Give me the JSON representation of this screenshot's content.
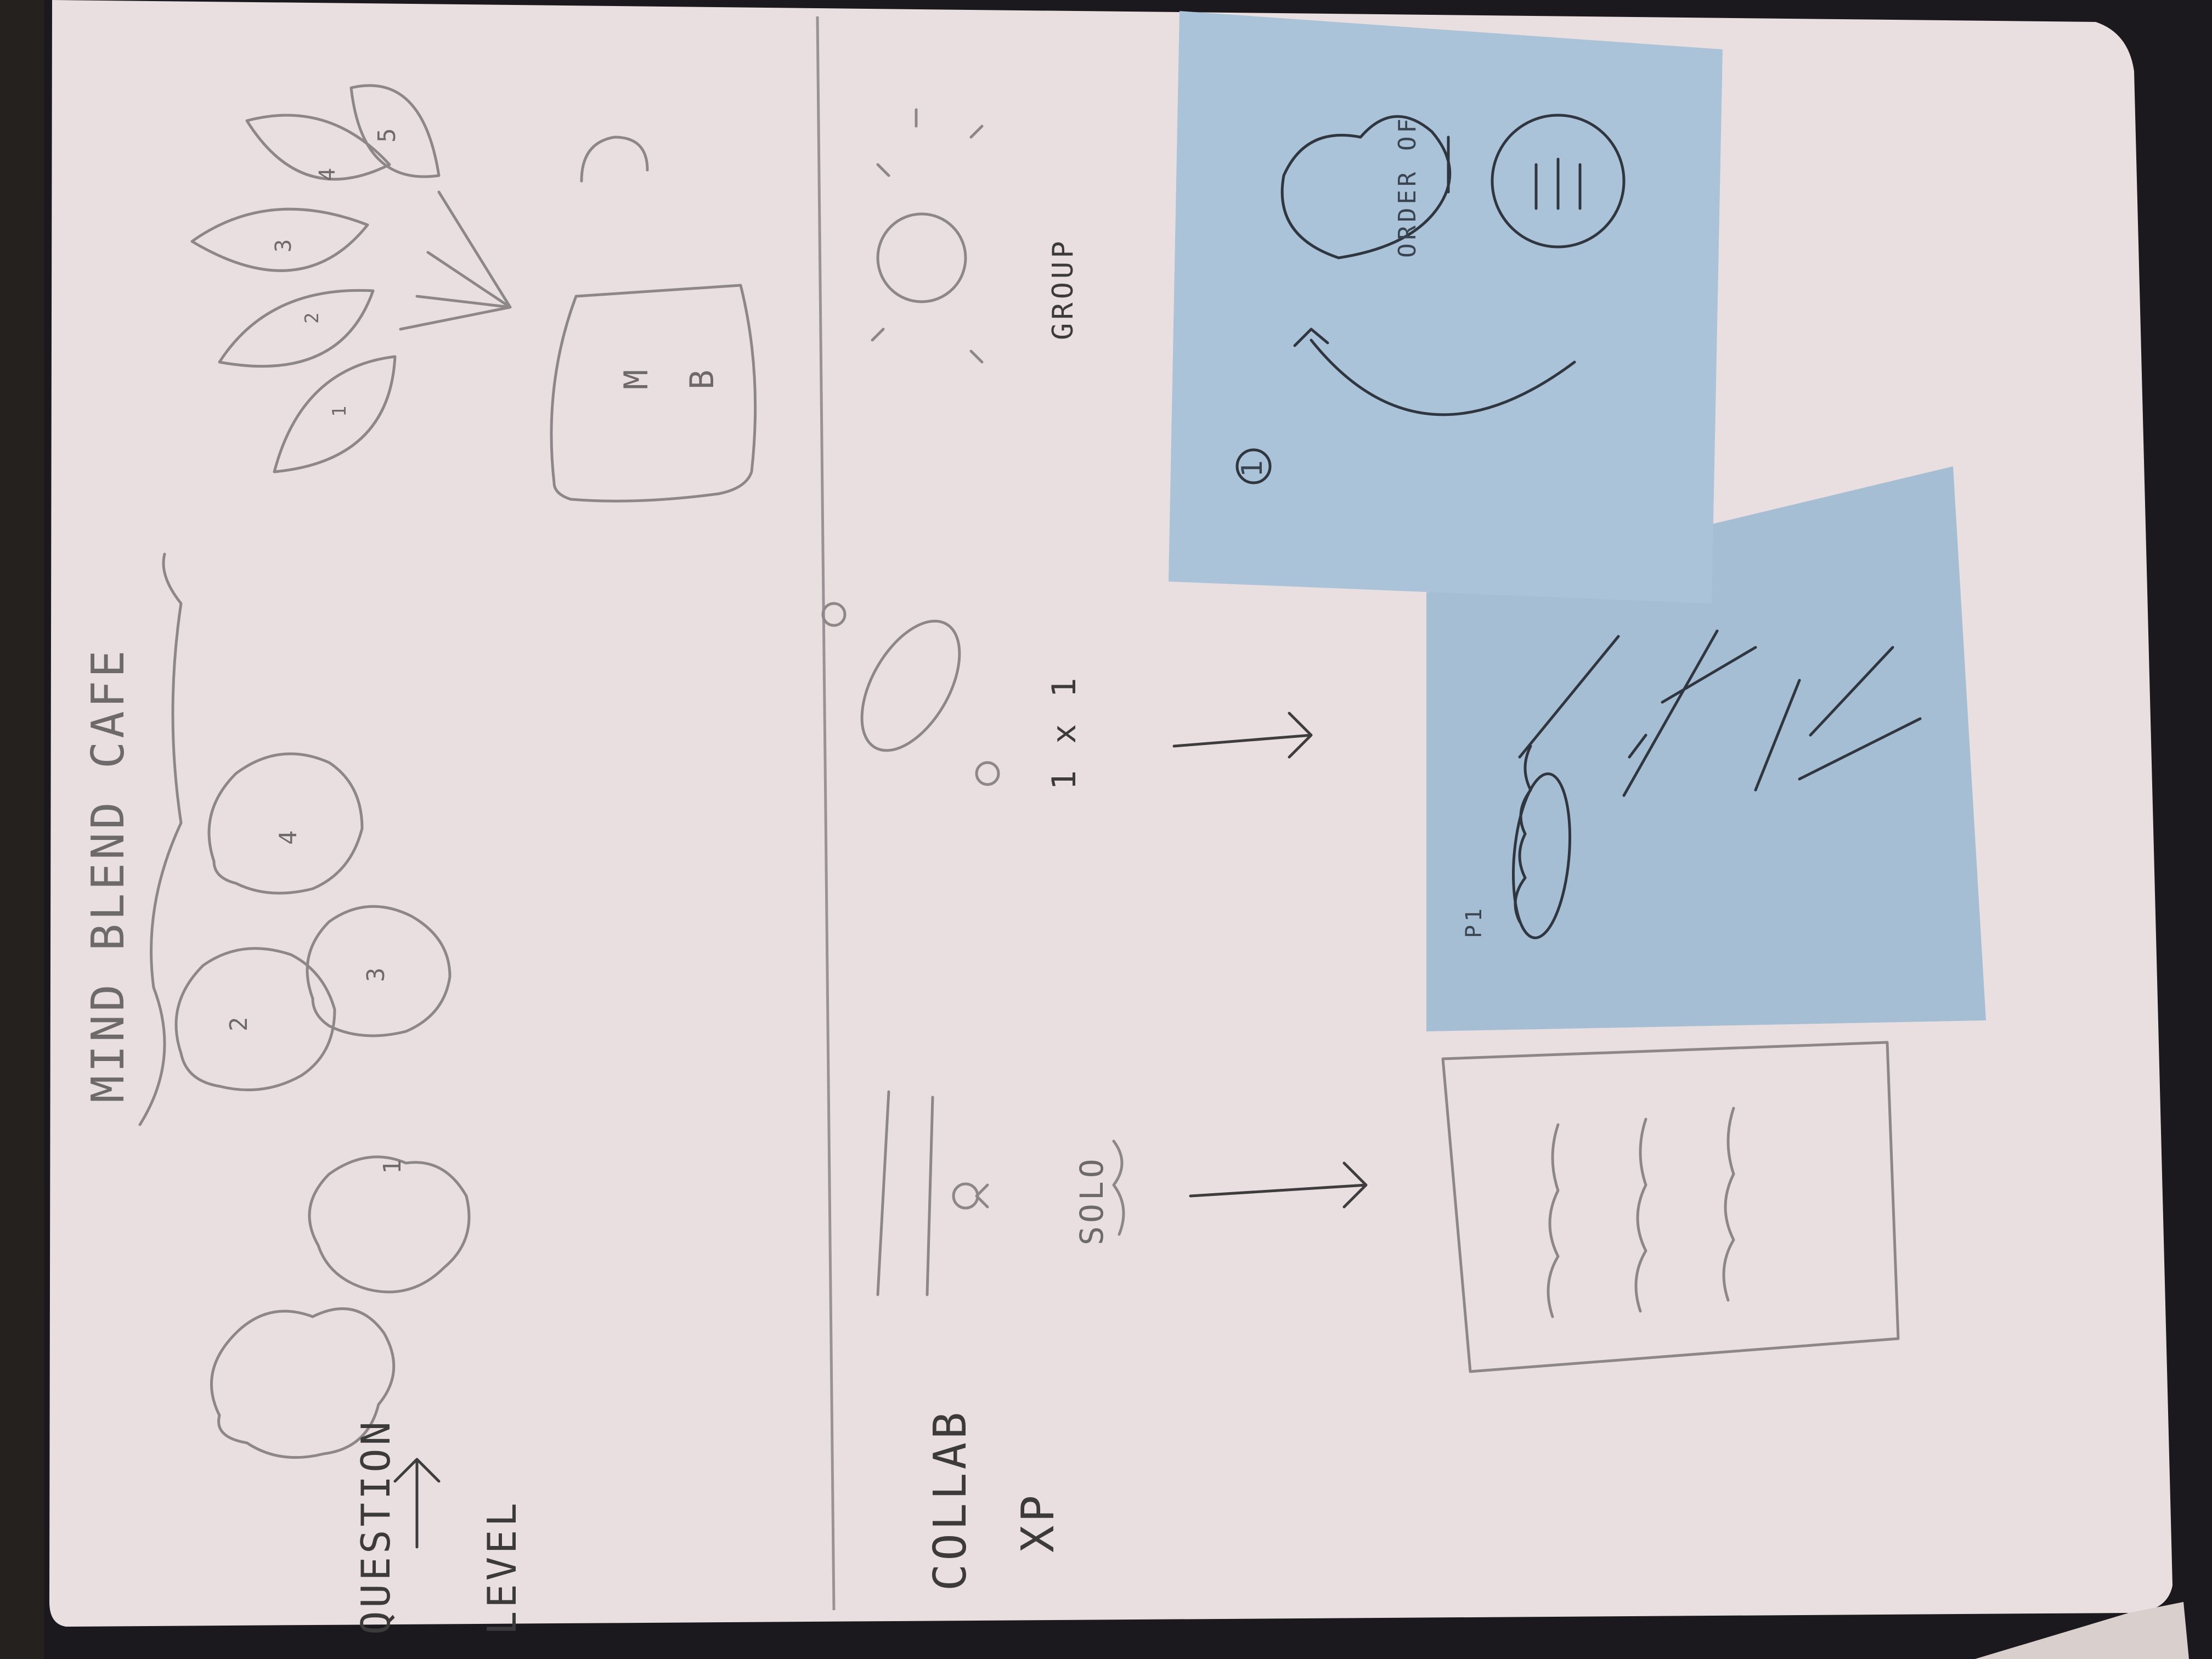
{
  "photo": {
    "subject": "notebook-sketch",
    "colors": {
      "page": "#e9dfe0",
      "sticky_note": "#a9c1d6",
      "cover": "#1c1a1e",
      "pencil": "#8d8789",
      "ink": "#3f3c3f"
    }
  },
  "sketch_page": {
    "title": "MIND BLEND CAFE",
    "left_label": "QUESTION",
    "left_label_2": "LEVEL",
    "bottom_label_line1": "COLLAB",
    "bottom_label_line2": "XP",
    "mode_solo": "SOLO",
    "mode_one_on_one": "1 x 1",
    "mode_group": "GROUP",
    "cloud_numbers": [
      "1",
      "2",
      "3",
      "4"
    ],
    "leaf_numbers": [
      "1",
      "2",
      "3",
      "4",
      "5"
    ],
    "mug_letters": [
      "M",
      "B"
    ]
  },
  "sticky_note_top": {
    "number": "1",
    "text": "ORDER OF"
  },
  "sticky_note_bottom": {
    "label": "P1"
  }
}
